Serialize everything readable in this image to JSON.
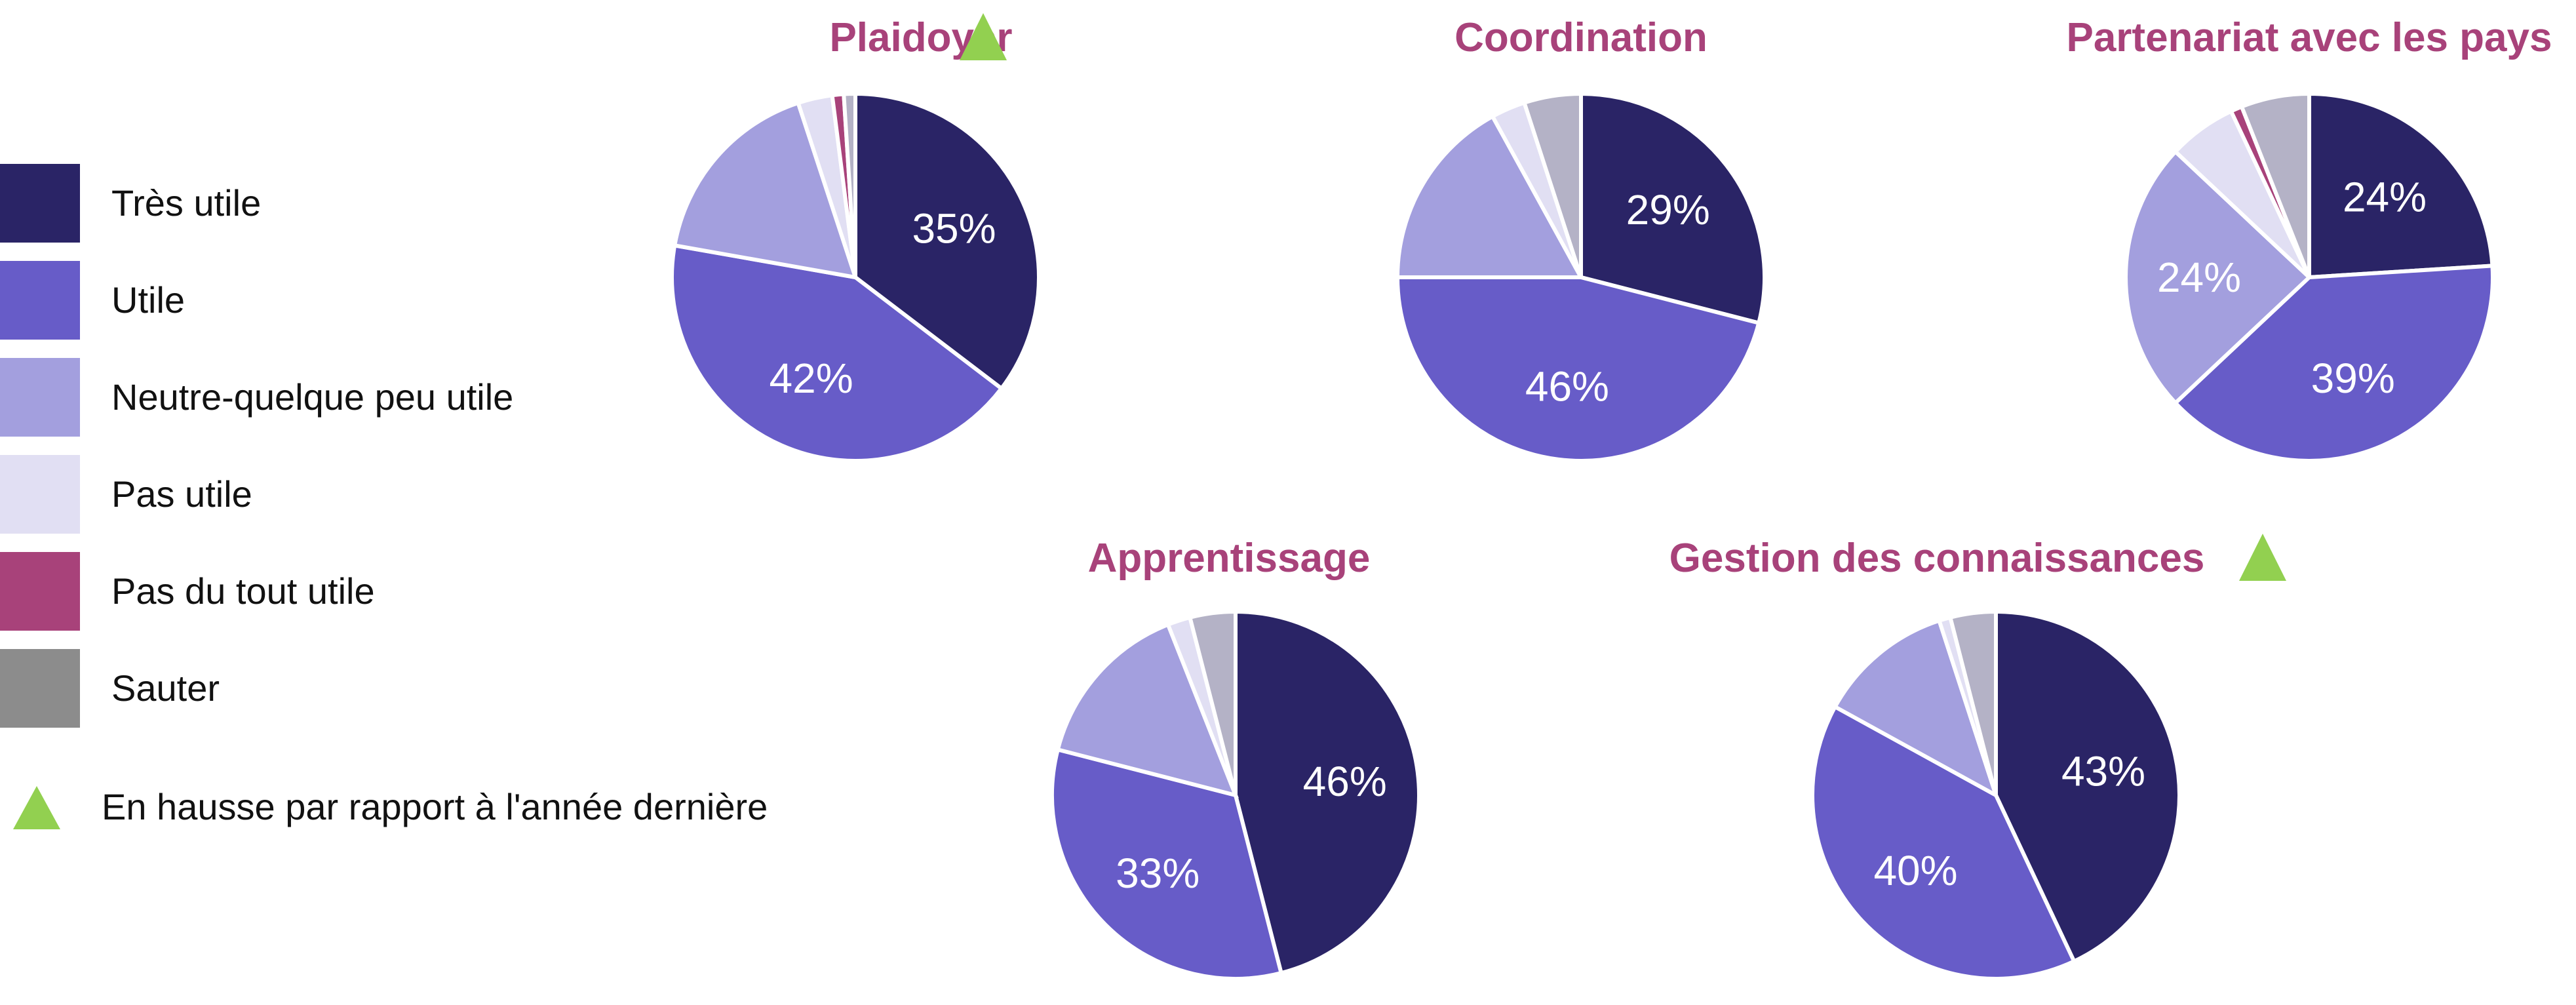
{
  "colors": {
    "tres_utile": "#2a2466",
    "utile": "#675cc8",
    "neutre": "#a39fde",
    "pas_utile": "#e1dff3",
    "pas_du_tout": "#a8427a",
    "sauter": "#b4b2c6",
    "sauter_legend": "#8c8c8c",
    "title": "#a8427a",
    "trend": "#92d050"
  },
  "legend": {
    "items": [
      {
        "label": "Très utile",
        "color": "#2a2466"
      },
      {
        "label": "Utile",
        "color": "#675cc8"
      },
      {
        "label": "Neutre-quelque peu utile",
        "color": "#a39fde"
      },
      {
        "label": "Pas utile",
        "color": "#e1dff3"
      },
      {
        "label": "Pas du tout utile",
        "color": "#a8427a"
      },
      {
        "label": "Sauter",
        "color": "#8c8c8c"
      }
    ],
    "trend_label": "En hausse par rapport à l'année dernière",
    "trend_icon": "triangle-up-icon"
  },
  "chart_data": [
    {
      "type": "pie",
      "title": "Plaidoyer",
      "trend_up": true,
      "categories": [
        "Très utile",
        "Utile",
        "Neutre-quelque peu utile",
        "Pas utile",
        "Pas du tout utile",
        "Sauter"
      ],
      "values": [
        35,
        42,
        17,
        3,
        1,
        1
      ],
      "data_labels": [
        "35%",
        "42%",
        "",
        "",
        "",
        ""
      ]
    },
    {
      "type": "pie",
      "title": "Coordination",
      "trend_up": false,
      "categories": [
        "Très utile",
        "Utile",
        "Neutre-quelque peu utile",
        "Pas utile",
        "Pas du tout utile",
        "Sauter"
      ],
      "values": [
        29,
        46,
        17,
        3,
        0,
        5
      ],
      "data_labels": [
        "29%",
        "46%",
        "",
        "",
        "",
        ""
      ]
    },
    {
      "type": "pie",
      "title": "Partenariat avec les pays",
      "trend_up": false,
      "categories": [
        "Très utile",
        "Utile",
        "Neutre-quelque peu utile",
        "Pas utile",
        "Pas du tout utile",
        "Sauter"
      ],
      "values": [
        24,
        39,
        24,
        6,
        1,
        6
      ],
      "data_labels": [
        "24%",
        "39%",
        "24%",
        "",
        "",
        ""
      ]
    },
    {
      "type": "pie",
      "title": "Apprentissage",
      "trend_up": false,
      "categories": [
        "Très utile",
        "Utile",
        "Neutre-quelque peu utile",
        "Pas utile",
        "Pas du tout utile",
        "Sauter"
      ],
      "values": [
        46,
        33,
        15,
        2,
        0,
        4
      ],
      "data_labels": [
        "46%",
        "33%",
        "",
        "",
        "",
        ""
      ]
    },
    {
      "type": "pie",
      "title": "Gestion des connaissances",
      "trend_up": true,
      "categories": [
        "Très utile",
        "Utile",
        "Neutre-quelque peu utile",
        "Pas utile",
        "Pas du tout utile",
        "Sauter"
      ],
      "values": [
        43,
        40,
        12,
        1,
        0,
        4
      ],
      "data_labels": [
        "43%",
        "40%",
        "",
        "",
        "",
        ""
      ]
    }
  ]
}
